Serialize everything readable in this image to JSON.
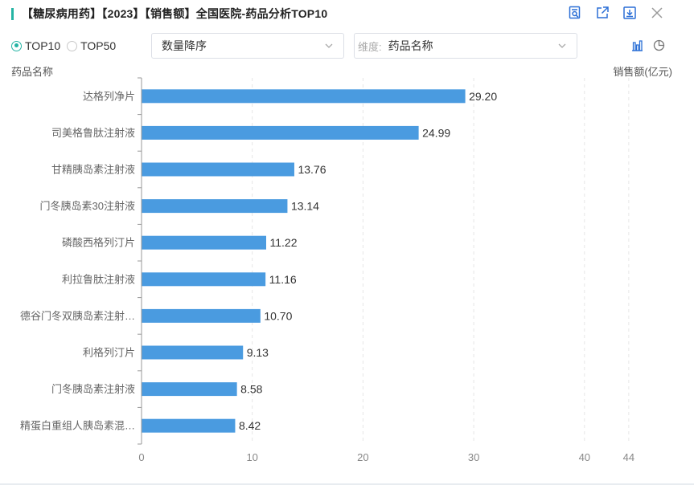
{
  "header": {
    "title": "【糖尿病用药】【2023】【销售额】全国医院-药品分析TOP10",
    "icons": [
      "report-icon",
      "export-icon",
      "download-icon",
      "close-icon"
    ]
  },
  "controls": {
    "radios": [
      {
        "label": "TOP10",
        "checked": true
      },
      {
        "label": "TOP50",
        "checked": false
      }
    ],
    "sort_select": {
      "value": "数量降序"
    },
    "dim_select": {
      "prefix": "维度:",
      "value": "药品名称"
    }
  },
  "colors": {
    "accent": "#25b4a4",
    "bar": "#4a9be0",
    "icon": "#2b6fd6"
  },
  "chart_data": {
    "type": "bar",
    "orientation": "horizontal",
    "ylabel": "药品名称",
    "xlabel": "销售额(亿元)",
    "categories": [
      "达格列净片",
      "司美格鲁肽注射液",
      "甘精胰岛素注射液",
      "门冬胰岛素30注射液",
      "磷酸西格列汀片",
      "利拉鲁肽注射液",
      "德谷门冬双胰岛素注射…",
      "利格列汀片",
      "门冬胰岛素注射液",
      "精蛋白重组人胰岛素混…"
    ],
    "values": [
      29.2,
      24.99,
      13.76,
      13.14,
      11.22,
      11.16,
      10.7,
      9.13,
      8.58,
      8.42
    ],
    "value_labels": [
      "29.20",
      "24.99",
      "13.76",
      "13.14",
      "11.22",
      "11.16",
      "10.70",
      "9.13",
      "8.58",
      "8.42"
    ],
    "xticks": [
      0,
      10,
      20,
      30,
      40,
      44
    ],
    "xlim": [
      0,
      44
    ],
    "grid": true
  }
}
